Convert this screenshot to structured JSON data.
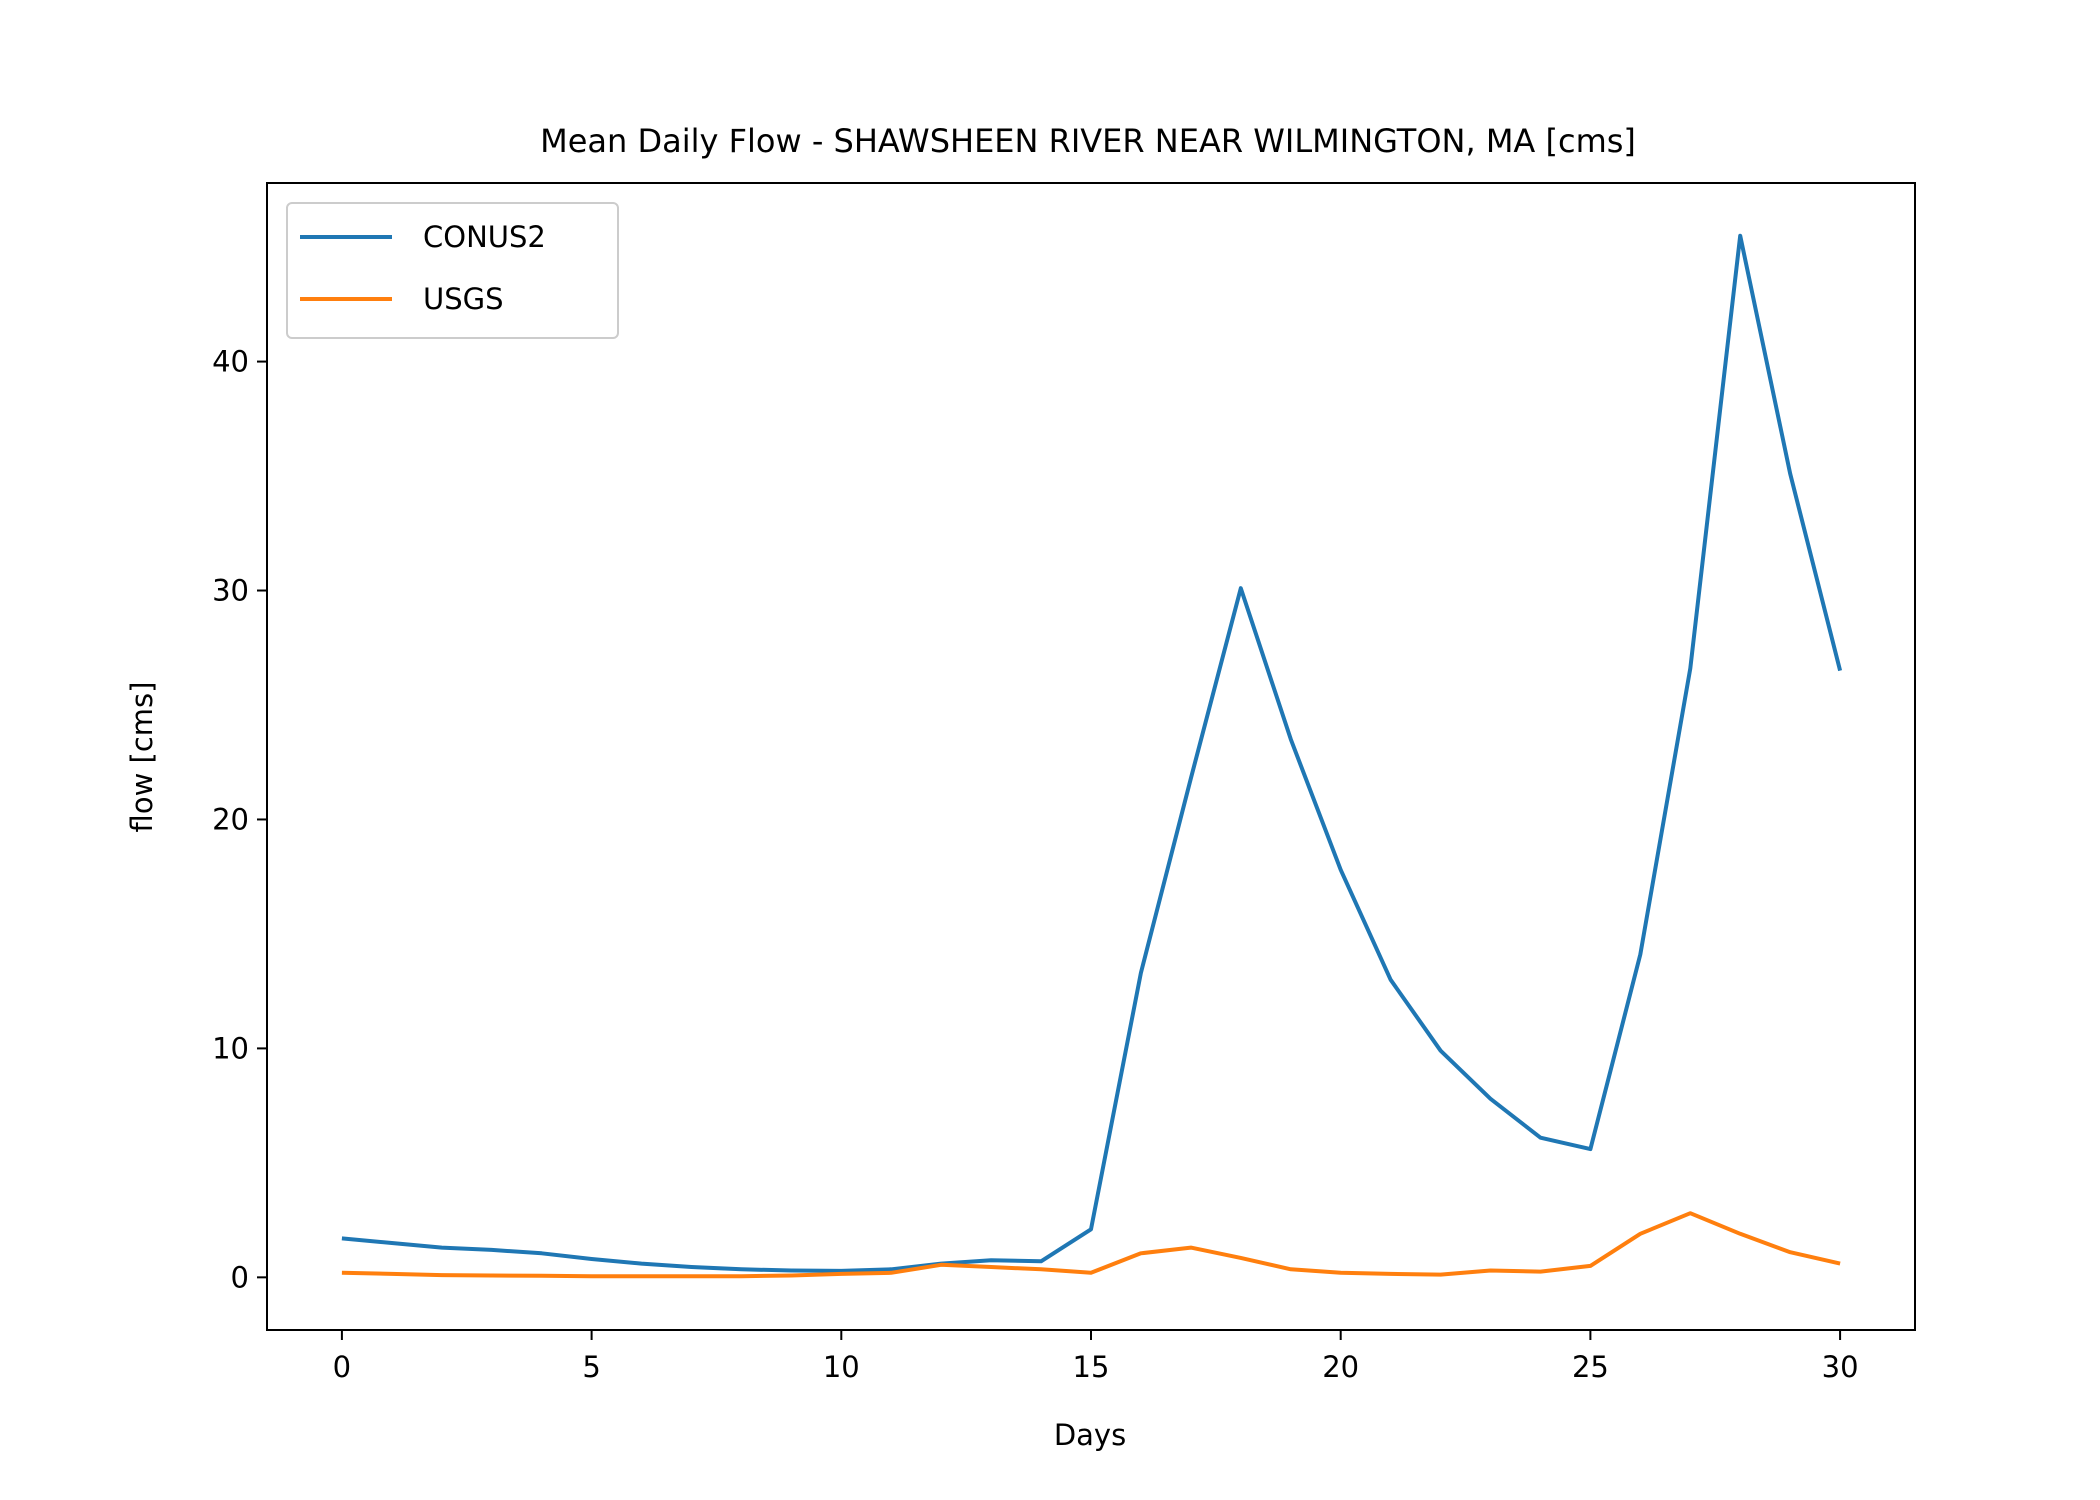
{
  "chart_data": {
    "type": "line",
    "title": "Mean Daily Flow - SHAWSHEEN RIVER NEAR WILMINGTON, MA [cms]",
    "xlabel": "Days",
    "ylabel": "flow [cms]",
    "xlim": [
      -1.5,
      31.5
    ],
    "ylim": [
      -2.3,
      47.8
    ],
    "xticks": [
      0,
      5,
      10,
      15,
      20,
      25,
      30
    ],
    "yticks": [
      0,
      10,
      20,
      30,
      40
    ],
    "grid": false,
    "legend_position": "top-left",
    "x": [
      0,
      1,
      2,
      3,
      4,
      5,
      6,
      7,
      8,
      9,
      10,
      11,
      12,
      13,
      14,
      15,
      16,
      17,
      18,
      19,
      20,
      21,
      22,
      23,
      24,
      25,
      26,
      27,
      28,
      29,
      30
    ],
    "series": [
      {
        "name": "CONUS2",
        "color": "#1f77b4",
        "values": [
          1.7,
          1.5,
          1.3,
          1.2,
          1.05,
          0.8,
          0.6,
          0.45,
          0.35,
          0.3,
          0.28,
          0.35,
          0.6,
          0.75,
          0.7,
          2.1,
          13.3,
          21.8,
          30.1,
          23.5,
          17.8,
          13.0,
          9.9,
          7.8,
          6.1,
          5.6,
          14.1,
          26.6,
          45.5,
          35.1,
          26.5
        ]
      },
      {
        "name": "USGS",
        "color": "#ff7f0e",
        "values": [
          0.2,
          0.15,
          0.1,
          0.08,
          0.07,
          0.05,
          0.05,
          0.05,
          0.05,
          0.08,
          0.15,
          0.2,
          0.55,
          0.45,
          0.35,
          0.2,
          1.05,
          1.3,
          0.85,
          0.35,
          0.2,
          0.15,
          0.12,
          0.3,
          0.25,
          0.5,
          1.9,
          2.8,
          1.9,
          1.1,
          0.6
        ]
      }
    ]
  }
}
